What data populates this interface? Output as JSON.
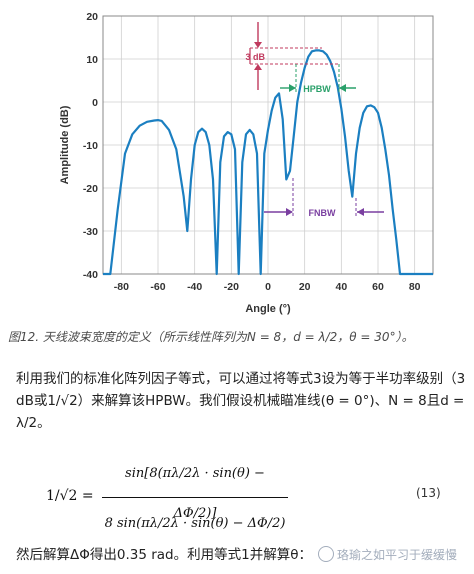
{
  "chart_data": {
    "type": "line",
    "xlabel": "Angle (°)",
    "ylabel": "Amplitude (dB)",
    "xlim": [
      -90,
      90
    ],
    "ylim": [
      -40,
      20
    ],
    "x_ticks": [
      -80,
      -60,
      -40,
      -20,
      0,
      20,
      40,
      60,
      80
    ],
    "y_ticks": [
      20,
      10,
      0,
      -10,
      -20,
      -30,
      -40
    ],
    "grid": true,
    "line_color": "#1b7fc1",
    "series": [
      {
        "x": [
          -90,
          -86,
          -82,
          -78,
          -74,
          -70,
          -66,
          -62,
          -60,
          -58,
          -54,
          -50,
          -46,
          -44,
          -42,
          -40,
          -38,
          -36,
          -34,
          -32,
          -30,
          -28,
          -26,
          -24,
          -22,
          -20,
          -18,
          -16,
          -14,
          -12,
          -10,
          -8,
          -6,
          -4,
          -2,
          0,
          2,
          4,
          6,
          8,
          10,
          12,
          14,
          16,
          18,
          20,
          22,
          24,
          26,
          28,
          30,
          32,
          34,
          36,
          38,
          40,
          42,
          44,
          46,
          48,
          50,
          52,
          54,
          56,
          58,
          60,
          62,
          64,
          66,
          68,
          70,
          72,
          74,
          76,
          78,
          80,
          82,
          84,
          86,
          88,
          90
        ],
        "y": [
          -40,
          -40,
          -25,
          -12,
          -7.5,
          -5.5,
          -4.6,
          -4.3,
          -4.2,
          -4.4,
          -6.5,
          -11,
          -22,
          -30,
          -18,
          -10,
          -7,
          -6.2,
          -7,
          -10,
          -18,
          -40,
          -14,
          -8,
          -7,
          -7.5,
          -11,
          -40,
          -14,
          -7.5,
          -6.5,
          -7.5,
          -12,
          -40,
          -12,
          -6.5,
          -2,
          1,
          2,
          -4,
          -18,
          -16,
          -8,
          0,
          4.5,
          8,
          10.5,
          11.8,
          12,
          12,
          11.8,
          11,
          9.5,
          7,
          3.5,
          -1.5,
          -8,
          -16,
          -22,
          -12,
          -6,
          -2.5,
          -1,
          -0.8,
          -1.2,
          -2.5,
          -6,
          -11,
          -17,
          -25,
          -32,
          -40,
          -40,
          -40,
          -40,
          -40,
          -40,
          -40,
          -40,
          -40,
          -40
        ]
      }
    ],
    "annotations": [
      {
        "text": "3 dB",
        "color": "#c03a5e"
      },
      {
        "text": "HPBW",
        "color": "#2aa06a"
      },
      {
        "text": "FNBW",
        "color": "#7a3fa0"
      }
    ]
  },
  "caption": "图12. 天线波束宽度的定义（所示线性阵列为N = 8，d = λ/2，θ = 30°）。",
  "paragraph": "利用我们的标准化阵列因子等式，可以通过将等式3设为等于半功率级别（3 dB或1/√2）来解算该HPBW。我们假设机械瞄准线(θ = 0°)、N = 8且d = λ/2。",
  "equation": {
    "lhs": "1/√2 =",
    "numerator": "sin[8(πλ/2λ · sin(θ) − ΔΦ/2)]",
    "denominator": "8 sin(πλ/2λ · sin(θ) − ΔΦ/2)",
    "number": "(13)"
  },
  "last_line": "然后解算ΔΦ得出0.35 rad。利用等式1并解算θ：",
  "watermark": "珞瑜之如平习于缓缓慢"
}
